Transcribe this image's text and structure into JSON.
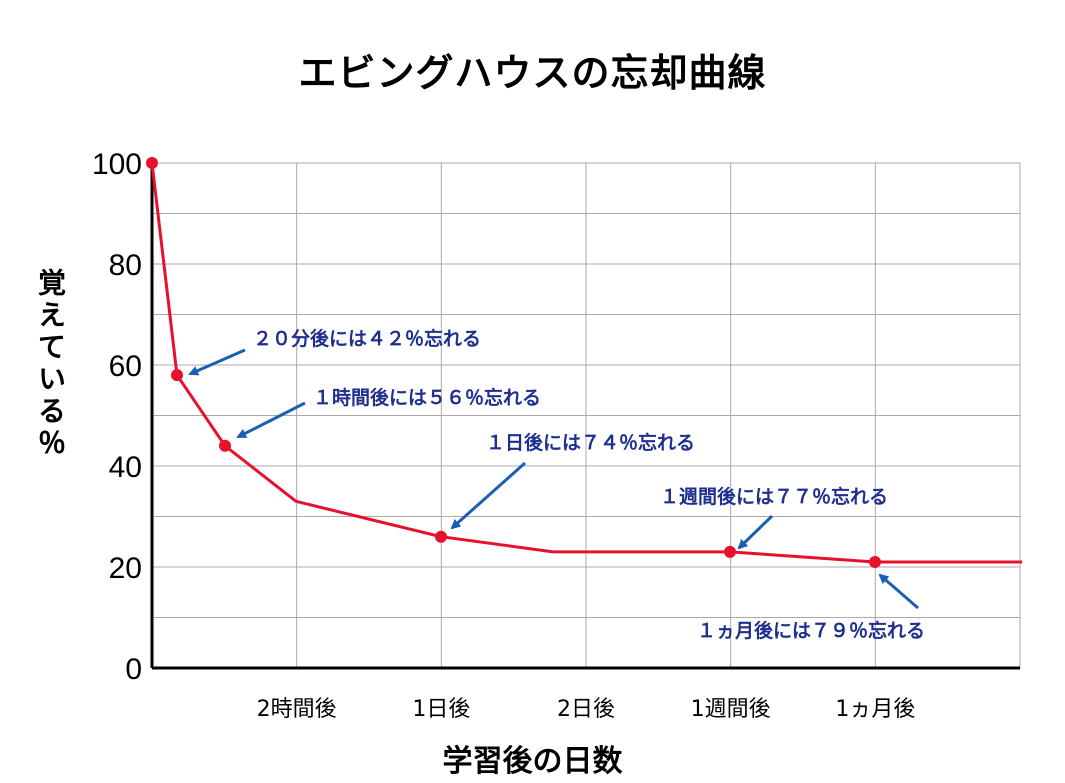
{
  "chart_data": {
    "type": "line",
    "title": "エビングハウスの忘却曲線",
    "xlabel": "学習後の日数",
    "ylabel": "覚えている％",
    "ylim": [
      0,
      100
    ],
    "yticks": [
      "0",
      "20",
      "40",
      "60",
      "80",
      "100"
    ],
    "categories": [
      "2時間後",
      "1日後",
      "2日後",
      "1週間後",
      "1ヵ月後"
    ],
    "grid": true,
    "series": [
      {
        "color": "#e8112d",
        "points": [
          {
            "x": "0",
            "y": 100,
            "marker": true
          },
          {
            "x": "20分後",
            "y": 58,
            "marker": true
          },
          {
            "x": "1時間後",
            "y": 44,
            "marker": true
          },
          {
            "x": "2時間後",
            "y": 33,
            "marker": false
          },
          {
            "x": "1日後",
            "y": 26,
            "marker": true
          },
          {
            "x": "2日後",
            "y": 23,
            "marker": false
          },
          {
            "x": "1週間後",
            "y": 23,
            "marker": true
          },
          {
            "x": "1ヵ月後",
            "y": 21,
            "marker": true
          },
          {
            "x": "end",
            "y": 21,
            "marker": false
          }
        ]
      }
    ],
    "annotations": [
      {
        "text": "２０分後には４２％忘れる",
        "point": 1
      },
      {
        "text": "１時間後には５６％忘れる",
        "point": 2
      },
      {
        "text": "１日後には７４％忘れる",
        "point": 4
      },
      {
        "text": "１週間後には７７％忘れる",
        "point": 6
      },
      {
        "text": "１ヵ月後には７９％忘れる",
        "point": 7
      }
    ]
  }
}
